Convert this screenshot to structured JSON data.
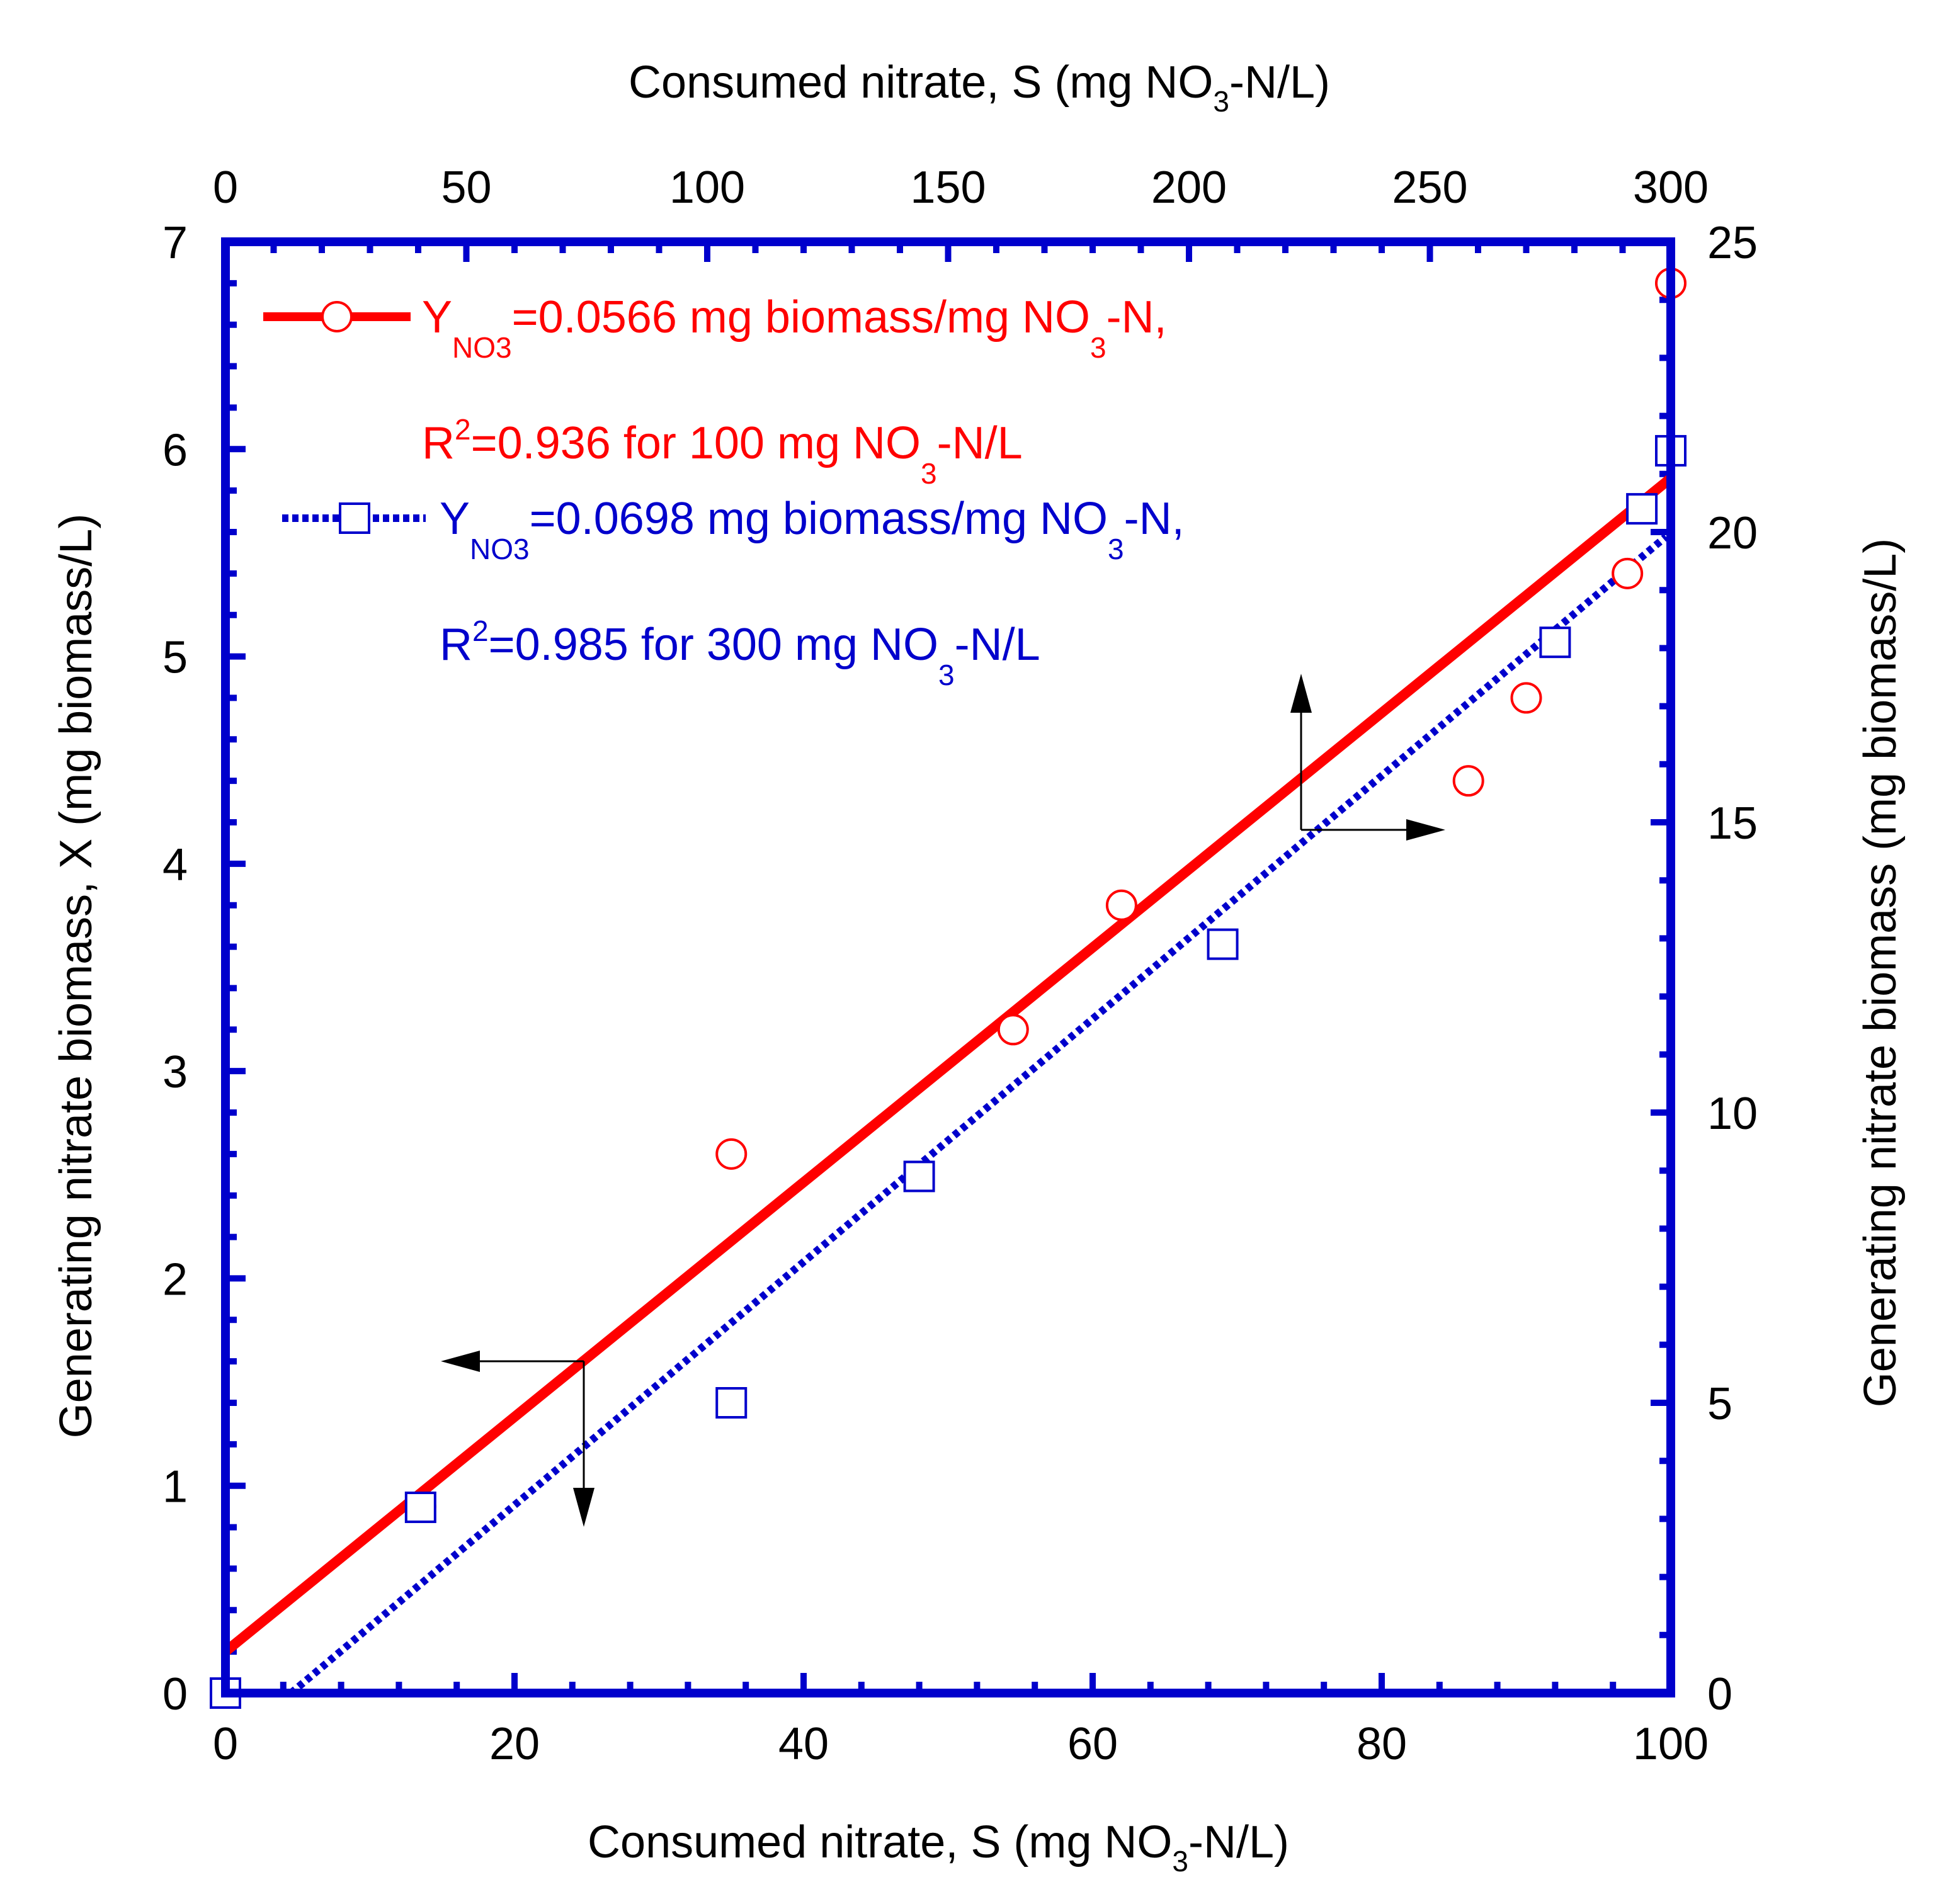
{
  "colors": {
    "red": "#ff0000",
    "blue": "#0000cc",
    "frame": "#0000cc",
    "text": "#000000"
  },
  "chart_data": {
    "type": "scatter",
    "title": "",
    "x_bottom": {
      "label": "Consumed nitrate, S (mg NO",
      "label_sub": "3",
      "label_tail": "-N/L)",
      "range": [
        0,
        100
      ],
      "ticks": [
        "0",
        "20",
        "40",
        "60",
        "80",
        "100"
      ]
    },
    "x_top": {
      "label": "Consumed nitrate, S (mg NO",
      "label_sub": "3",
      "label_tail": "-N/L)",
      "range": [
        0,
        300
      ],
      "ticks": [
        "0",
        "50",
        "100",
        "150",
        "200",
        "250",
        "300"
      ]
    },
    "y_left": {
      "label": "Generating nitrate biomass, X (mg biomass/L)",
      "range": [
        0,
        7
      ],
      "ticks": [
        "0",
        "1",
        "2",
        "3",
        "4",
        "5",
        "6",
        "7"
      ]
    },
    "y_right": {
      "label": "Generating nitrate biomass (mg biomass/L)",
      "range": [
        0,
        25
      ],
      "ticks": [
        "0",
        "5",
        "10",
        "15",
        "20",
        "25"
      ]
    },
    "series": [
      {
        "name": "100 mg NO3-N/L",
        "axes": "bottom-left",
        "marker": "circle",
        "points": [
          [
            0,
            0
          ],
          [
            13.5,
            0.9
          ],
          [
            35,
            2.6
          ],
          [
            54.5,
            3.2
          ],
          [
            62,
            3.8
          ],
          [
            86,
            4.4
          ],
          [
            90,
            4.8
          ],
          [
            97,
            5.4
          ],
          [
            100,
            6.8
          ]
        ],
        "fit": {
          "style": "solid",
          "slope": 0.0566,
          "intercept": 0.2,
          "x_start": 0,
          "x_end": 100
        },
        "legend": {
          "prefix": "Y",
          "prefix_sub": "NO3",
          "text": "=0.0566 mg biomass/mg NO",
          "text_sub": "3",
          "text_tail": "-N,",
          "r2_prefix": "R",
          "r2_sup": "2",
          "r2_text": "=0.936 for 100 mg NO",
          "r2_sub": "3",
          "r2_tail": "-N/L"
        }
      },
      {
        "name": "300 mg NO3-N/L",
        "axes": "top-right",
        "marker": "square",
        "points": [
          [
            0,
            0
          ],
          [
            40.5,
            3.2
          ],
          [
            105,
            5.0
          ],
          [
            144,
            8.9
          ],
          [
            207,
            12.9
          ],
          [
            276,
            18.1
          ],
          [
            294,
            20.4
          ],
          [
            300,
            21.4
          ]
        ],
        "fit": {
          "style": "dotted",
          "slope": 0.0698,
          "intercept": -0.95,
          "x_start": 13.6,
          "x_end": 299
        },
        "legend": {
          "prefix": "Y",
          "prefix_sub": "NO3",
          "text": "=0.0698 mg biomass/mg NO",
          "text_sub": "3",
          "text_tail": "-N,",
          "r2_prefix": "R",
          "r2_sup": "2",
          "r2_text": "=0.985 for 300 mg NO",
          "r2_sub": "3",
          "r2_tail": "-N/L"
        }
      }
    ]
  }
}
